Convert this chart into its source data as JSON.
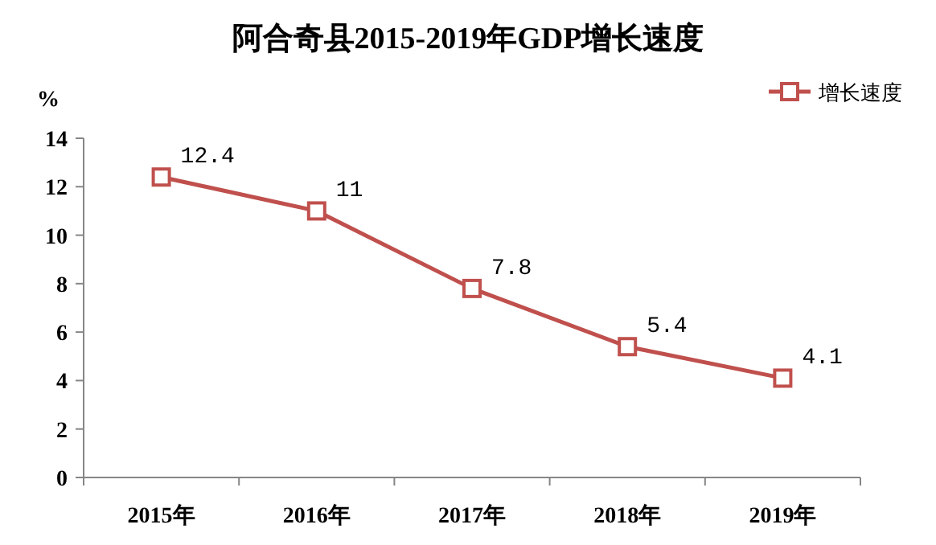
{
  "chart_data": {
    "type": "line",
    "title": "阿合奇县2015-2019年GDP增长速度",
    "ylabel": "%",
    "categories": [
      "2015年",
      "2016年",
      "2017年",
      "2018年",
      "2019年"
    ],
    "series": [
      {
        "name": "增长速度",
        "color": "#c0504d",
        "values": [
          12.4,
          11,
          7.8,
          5.4,
          4.1
        ]
      }
    ],
    "ylim": [
      0,
      14
    ],
    "yticks": [
      0,
      2,
      4,
      6,
      8,
      10,
      12,
      14
    ],
    "data_labels": true,
    "legend": "top right",
    "marker": "square",
    "line_style": "solid"
  }
}
